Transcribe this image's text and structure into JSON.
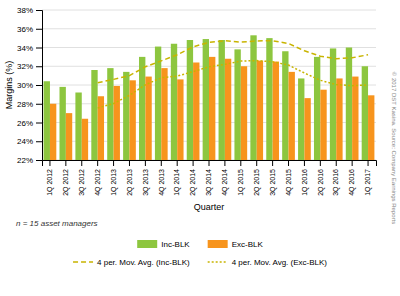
{
  "chart_data": {
    "type": "bar",
    "xlabel": "Quarter",
    "ylabel": "Margins (%)",
    "categories": [
      "1Q 2012",
      "2Q 2012",
      "3Q 2012",
      "4Q 2012",
      "1Q 2013",
      "2Q 2013",
      "3Q 2013",
      "4Q 2013",
      "1Q 2014",
      "2Q 2014",
      "3Q 2014",
      "4Q 2014",
      "1Q 2015",
      "2Q 2015",
      "3Q 2015",
      "4Q 2015",
      "1Q 2016",
      "2Q 2016",
      "3Q 2016",
      "4Q 2016",
      "1Q 2017"
    ],
    "series": [
      {
        "name": "Inc-BLK",
        "type": "bar",
        "color": "#8dc63f",
        "values": [
          30.4,
          29.8,
          29.2,
          31.6,
          31.8,
          31.4,
          33.0,
          34.1,
          34.4,
          34.8,
          34.9,
          34.8,
          33.8,
          35.3,
          35.0,
          33.6,
          30.7,
          33.0,
          33.9,
          34.0,
          32.0
        ]
      },
      {
        "name": "Exc-BLK",
        "type": "bar",
        "color": "#f7941d",
        "values": [
          28.0,
          27.0,
          26.4,
          28.8,
          29.9,
          30.5,
          30.9,
          31.8,
          30.6,
          32.4,
          33.0,
          32.8,
          32.0,
          32.6,
          32.5,
          31.4,
          28.6,
          29.5,
          30.7,
          30.9,
          28.9
        ]
      },
      {
        "name": "4 per. Mov. Avg. (Inc-BLK)",
        "type": "line",
        "color": "#c8b400",
        "line_style": "dashed",
        "values": [
          null,
          null,
          null,
          30.25,
          30.6,
          31.0,
          31.95,
          32.575,
          33.225,
          34.075,
          34.55,
          34.725,
          34.575,
          34.7,
          34.725,
          34.425,
          33.65,
          33.075,
          32.8,
          32.9,
          33.225
        ]
      },
      {
        "name": "4 per. Mov. Avg. (Exc-BLK)",
        "type": "line",
        "color": "#c8b400",
        "line_style": "dotted",
        "values": [
          null,
          null,
          null,
          27.55,
          28.025,
          28.9,
          30.025,
          30.775,
          30.95,
          31.425,
          31.95,
          32.2,
          32.55,
          32.6,
          32.475,
          32.125,
          31.275,
          30.5,
          30.05,
          29.925,
          30.0
        ]
      }
    ],
    "ylim": [
      22,
      38
    ],
    "yticks": [
      {
        "value": 22,
        "label": "22%"
      },
      {
        "value": 24,
        "label": "24%"
      },
      {
        "value": 26,
        "label": "26%"
      },
      {
        "value": 28,
        "label": "28%"
      },
      {
        "value": 30,
        "label": "30%"
      },
      {
        "value": 32,
        "label": "32%"
      },
      {
        "value": 34,
        "label": "34%"
      },
      {
        "value": 36,
        "label": "36%"
      },
      {
        "value": 38,
        "label": "38%"
      }
    ],
    "grid": true,
    "legend": "bottom",
    "annotations": [
      "n = 15 asset managers",
      "© 2017 DST Kasina. Source: Company Earnings Reports"
    ]
  }
}
